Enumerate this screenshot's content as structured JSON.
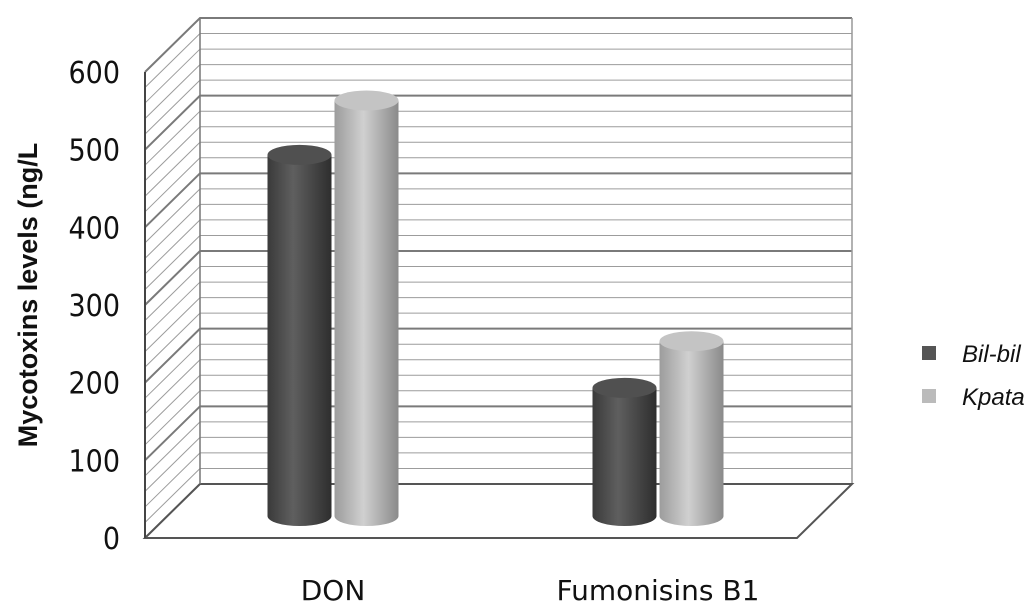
{
  "chart_data": {
    "type": "bar",
    "categories": [
      "DON",
      "Fumonisins B1"
    ],
    "series": [
      {
        "name": "Bil-bil",
        "values": [
          465,
          165
        ],
        "color": "#555555"
      },
      {
        "name": "Kpata",
        "values": [
          535,
          225
        ],
        "color": "#bbbbbb"
      }
    ],
    "ylabel": "Mycotoxins levels (ng/L",
    "ylim": [
      0,
      600
    ],
    "yticks": [
      0,
      100,
      200,
      300,
      400,
      500,
      600
    ],
    "ytick_labels": [
      "0",
      "100",
      "200",
      "300",
      "400",
      "500",
      "600"
    ],
    "grid": true,
    "legend_position": "right",
    "style": "3d-cylinder"
  }
}
